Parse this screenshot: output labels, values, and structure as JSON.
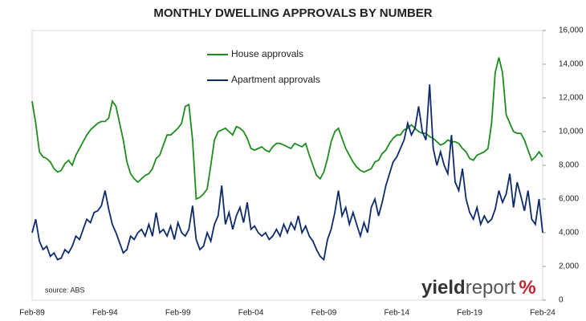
{
  "chart_data": {
    "type": "line",
    "title": "MONTHLY DWELLING APPROVALS BY NUMBER",
    "source": "source: ABS",
    "logo": {
      "first": "yield",
      "second": "report",
      "symbol": "%"
    },
    "categories": [
      "Feb-89",
      null,
      null,
      null,
      null,
      null,
      null,
      null,
      null,
      null,
      null,
      null,
      null,
      null,
      null,
      null,
      null,
      null,
      null,
      null,
      "Feb-94",
      null,
      null,
      null,
      null,
      null,
      null,
      null,
      null,
      null,
      null,
      null,
      null,
      null,
      null,
      null,
      null,
      null,
      null,
      null,
      "Feb-99",
      null,
      null,
      null,
      null,
      null,
      null,
      null,
      null,
      null,
      null,
      null,
      null,
      null,
      null,
      null,
      null,
      null,
      null,
      null,
      "Feb-04",
      null,
      null,
      null,
      null,
      null,
      null,
      null,
      null,
      null,
      null,
      null,
      null,
      null,
      null,
      null,
      null,
      null,
      null,
      null,
      "Feb-09",
      null,
      null,
      null,
      null,
      null,
      null,
      null,
      null,
      null,
      null,
      null,
      null,
      null,
      null,
      null,
      null,
      null,
      null,
      null,
      "Feb-14",
      null,
      null,
      null,
      null,
      null,
      null,
      null,
      null,
      null,
      null,
      null,
      null,
      null,
      null,
      null,
      null,
      null,
      null,
      null,
      "Feb-19",
      null,
      null,
      null,
      null,
      null,
      null,
      null,
      null,
      null,
      null,
      null,
      null,
      null,
      null,
      null,
      null,
      null,
      null,
      null,
      "Feb-24"
    ],
    "series": [
      {
        "name": "House approvals",
        "color": "#1e8c1e",
        "values": [
          11800,
          10500,
          8800,
          8500,
          8400,
          8200,
          7800,
          7600,
          7700,
          8100,
          8300,
          8000,
          8600,
          9000,
          9400,
          9800,
          10100,
          10300,
          10500,
          10600,
          10600,
          10800,
          11800,
          11500,
          10500,
          9500,
          8200,
          7500,
          7200,
          7000,
          7200,
          7400,
          7500,
          7800,
          8400,
          8600,
          9200,
          9800,
          9800,
          10000,
          10200,
          10500,
          11500,
          11600,
          9500,
          6000,
          6100,
          6300,
          6600,
          8000,
          9500,
          10000,
          10100,
          10200,
          10000,
          9800,
          10300,
          10200,
          10000,
          9600,
          9000,
          8900,
          9000,
          9100,
          8900,
          8800,
          9100,
          9300,
          9300,
          9200,
          9100,
          9000,
          9300,
          9200,
          9100,
          9300,
          8600,
          8000,
          7400,
          7200,
          7600,
          8400,
          9400,
          10000,
          10200,
          9600,
          9000,
          8600,
          8200,
          7900,
          7700,
          7600,
          7700,
          7800,
          8200,
          8300,
          8700,
          8900,
          9300,
          9600,
          9800,
          9800,
          10100,
          10200,
          10400,
          10200,
          10000,
          9900,
          9900,
          9700,
          9600,
          9400,
          9200,
          9300,
          9500,
          9400,
          9400,
          9300,
          9000,
          8800,
          8400,
          8300,
          8600,
          8700,
          8800,
          9000,
          10500,
          13500,
          14400,
          13500,
          11000,
          10500,
          10000,
          9900,
          9900,
          9500,
          8900,
          8300,
          8500,
          8800,
          8500
        ]
      },
      {
        "name": "Apartment approvals",
        "color": "#0d2a6b",
        "values": [
          4000,
          4800,
          3500,
          3000,
          3200,
          2600,
          2800,
          2400,
          2500,
          3000,
          2800,
          3200,
          3800,
          3600,
          4200,
          4800,
          4600,
          5200,
          5300,
          5600,
          6500,
          5400,
          4500,
          4000,
          3400,
          2800,
          3000,
          3800,
          3600,
          4000,
          4200,
          3800,
          4500,
          3800,
          5200,
          4000,
          4200,
          3800,
          4400,
          3600,
          4600,
          4000,
          3800,
          4200,
          5600,
          3600,
          3000,
          3200,
          4000,
          3500,
          4500,
          5000,
          6800,
          4500,
          5200,
          4200,
          5000,
          5500,
          4600,
          5800,
          4200,
          4400,
          4000,
          3800,
          4000,
          3600,
          3800,
          4200,
          3800,
          4500,
          4000,
          4600,
          4200,
          5000,
          4000,
          4400,
          3800,
          3500,
          3000,
          2600,
          2400,
          3600,
          4200,
          5200,
          6500,
          5000,
          5500,
          4500,
          5200,
          4500,
          3800,
          4600,
          4000,
          5500,
          6000,
          5000,
          5800,
          6800,
          7500,
          8200,
          8500,
          9000,
          9500,
          10500,
          9800,
          10200,
          11500,
          10000,
          9500,
          12800,
          9000,
          8000,
          8800,
          8000,
          7500,
          9800,
          7000,
          6500,
          7800,
          6000,
          5200,
          4800,
          5500,
          4500,
          5000,
          4600,
          4800,
          5400,
          6500,
          5800,
          6300,
          7500,
          5500,
          7000,
          6200,
          5300,
          6500,
          4800,
          4500,
          6000,
          4000
        ]
      }
    ],
    "ylim": [
      0,
      16000
    ],
    "yticks": [
      0,
      {
        "value": 2000,
        "label": "2,000"
      },
      {
        "value": 4000,
        "label": "4,000"
      },
      {
        "value": 6000,
        "label": "6,000"
      },
      {
        "value": 8000,
        "label": "8,000"
      },
      {
        "value": 10000,
        "label": "10,000"
      },
      {
        "value": 12000,
        "label": "12,000"
      },
      {
        "value": 14000,
        "label": "14,000"
      },
      {
        "value": 16000,
        "label": "16,000"
      }
    ],
    "grid": false,
    "legend": "top-left"
  }
}
